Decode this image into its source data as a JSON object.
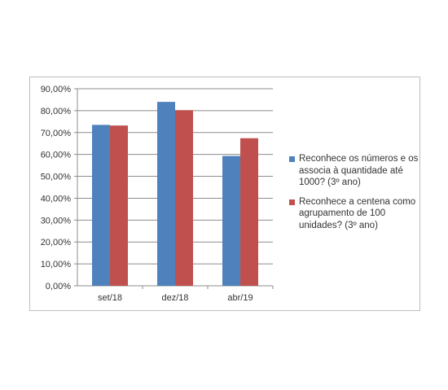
{
  "chart_data": {
    "type": "bar",
    "categories": [
      "set/18",
      "dez/18",
      "abr/19"
    ],
    "series": [
      {
        "name": "Reconhece os números e os associa à quantidade até 1000? (3º ano)",
        "color": "#4f81bd",
        "values": [
          73.5,
          84.0,
          59.3
        ]
      },
      {
        "name": "Reconhece a centena como agrupamento de 100 unidades? (3º ano)",
        "color": "#c0504d",
        "values": [
          73.2,
          80.2,
          67.4
        ]
      }
    ],
    "y_ticks": [
      "0,00%",
      "10,00%",
      "20,00%",
      "30,00%",
      "40,00%",
      "50,00%",
      "60,00%",
      "70,00%",
      "80,00%",
      "90,00%"
    ],
    "ylim": [
      0,
      90
    ],
    "grid": true,
    "legend_position": "right",
    "title": "",
    "xlabel": "",
    "ylabel": ""
  }
}
